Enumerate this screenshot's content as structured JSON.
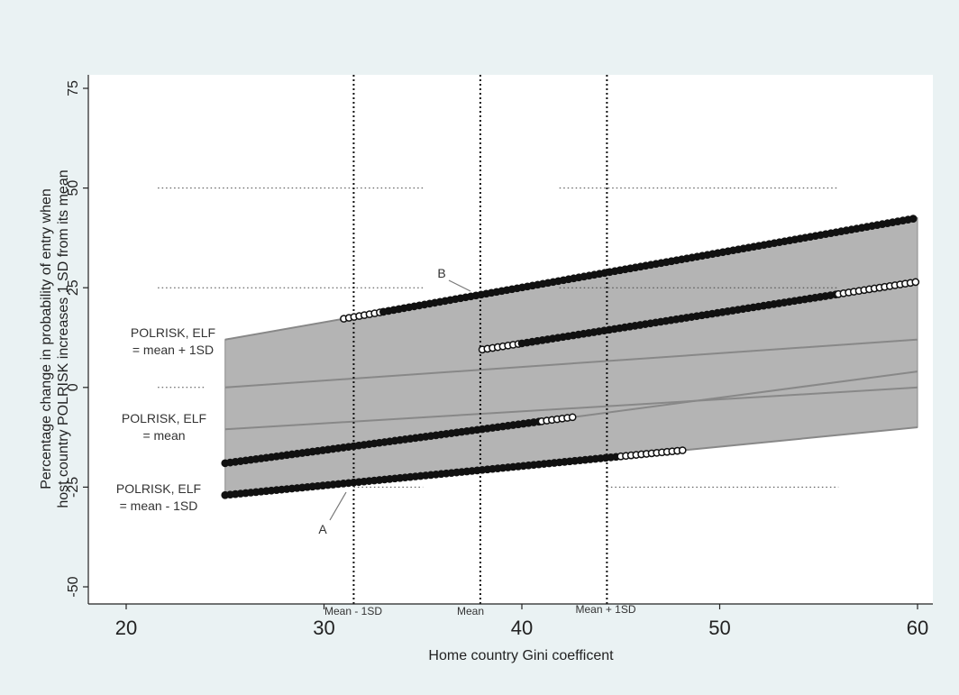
{
  "chart_data": {
    "type": "area",
    "xlabel": "Home country Gini coefficent",
    "ylabel_line1": "Percentage change in probability of entry when",
    "ylabel_line2": "host country POLRISK increases 1 SD from its mean",
    "xlim": [
      20,
      60
    ],
    "ylim": [
      -50,
      75
    ],
    "x_ticks": [
      {
        "value": 20,
        "label": "20"
      },
      {
        "value": 30,
        "label": "30"
      },
      {
        "value": 40,
        "label": "40"
      },
      {
        "value": 50,
        "label": "50"
      },
      {
        "value": 60,
        "label": "60"
      }
    ],
    "y_ticks": [
      {
        "value": -50,
        "label": "-50"
      },
      {
        "value": -25,
        "label": "-25"
      },
      {
        "value": 0,
        "label": "0"
      },
      {
        "value": 25,
        "label": "25"
      },
      {
        "value": 50,
        "label": "50"
      },
      {
        "value": 75,
        "label": "75"
      }
    ],
    "band": {
      "x": [
        25,
        60
      ],
      "upper": [
        12,
        42.5
      ],
      "lower": [
        -27,
        -10
      ]
    },
    "series": [
      {
        "x": [
          25,
          60
        ],
        "y": [
          12,
          42.5
        ],
        "significant_from": 33,
        "insignificant_range": [
          31,
          33
        ]
      },
      {
        "x": [
          38,
          60
        ],
        "y": [
          9.5,
          26.5
        ],
        "significant_from": 40,
        "significant_to": 56,
        "insignificant_range": [
          38,
          40
        ],
        "insignificant_range_2": [
          56,
          60
        ]
      },
      {
        "x": [
          25,
          60
        ],
        "y": [
          0,
          12
        ]
      },
      {
        "x": [
          25,
          60
        ],
        "y": [
          -10.5,
          0
        ]
      },
      {
        "x": [
          25,
          60
        ],
        "y": [
          -19,
          4
        ],
        "significant_to": 41,
        "insignificant_range": [
          41,
          42.8
        ]
      },
      {
        "x": [
          25,
          60
        ],
        "y": [
          -27,
          -10
        ],
        "significant_to": 45,
        "insignificant_range": [
          45,
          48.2
        ]
      }
    ],
    "vlines": [
      {
        "x": 31.5,
        "label": "Mean - 1SD"
      },
      {
        "x": 37.9,
        "label": "Mean"
      },
      {
        "x": 44.3,
        "label": "Mean + 1SD"
      }
    ],
    "reference_dotted": [
      {
        "y": 50,
        "x": [
          21.6,
          35.0
        ]
      },
      {
        "y": 50,
        "x": [
          41.9,
          56.0
        ]
      },
      {
        "y": 25,
        "x": [
          21.6,
          35.0
        ]
      },
      {
        "y": 25,
        "x": [
          41.9,
          56.0
        ]
      },
      {
        "y": 0,
        "x": [
          21.6,
          24.0
        ]
      },
      {
        "y": -25,
        "x": [
          31.5,
          35.0
        ]
      },
      {
        "y": -25,
        "x": [
          44.3,
          56.0
        ]
      }
    ],
    "annotations": [
      {
        "text": "POLRISK, ELF",
        "text2": "= mean + 1SD"
      },
      {
        "text": "POLRISK, ELF",
        "text2": "= mean"
      },
      {
        "text": "POLRISK, ELF",
        "text2": "= mean - 1SD"
      },
      {
        "text": "A"
      },
      {
        "text": "B"
      }
    ],
    "grid": false,
    "legend": "none"
  }
}
